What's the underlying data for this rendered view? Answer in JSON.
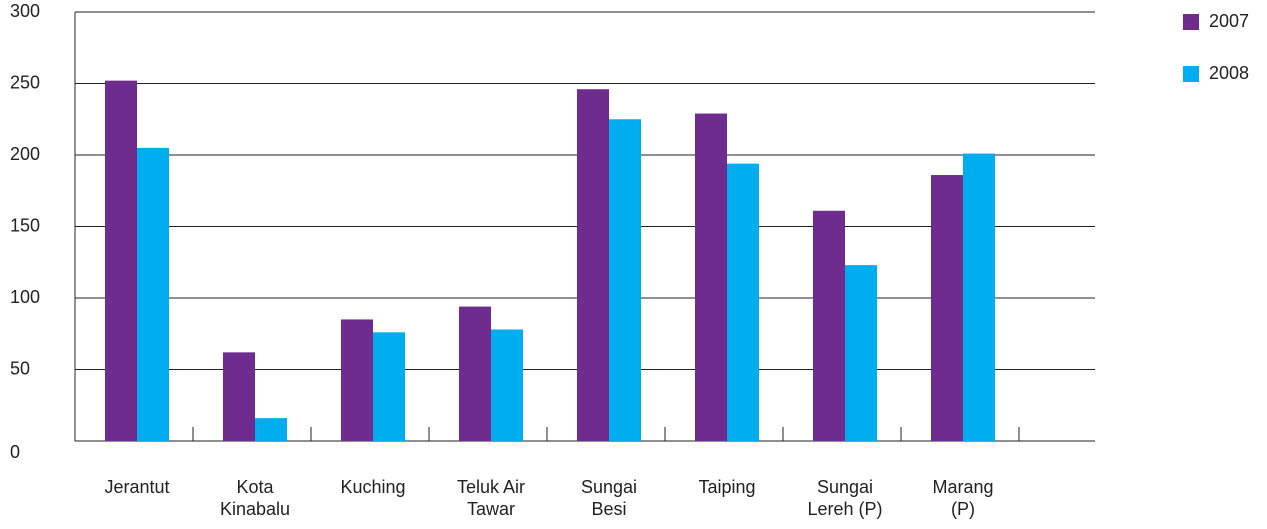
{
  "chart_data": {
    "type": "bar",
    "categories": [
      "Jerantut",
      "Kota\nKinabalu",
      "Kuching",
      "Teluk Air\nTawar",
      "Sungai\nBesi",
      "Taiping",
      "Sungai\nLereh (P)",
      "Marang\n(P)"
    ],
    "series": [
      {
        "name": "2007",
        "color": "#6e2c8e",
        "values": [
          252,
          62,
          85,
          94,
          246,
          229,
          161,
          186
        ]
      },
      {
        "name": "2008",
        "color": "#00aeef",
        "values": [
          205,
          16,
          76,
          78,
          225,
          194,
          123,
          201
        ]
      }
    ],
    "ylim": [
      0,
      300
    ],
    "yticks": [
      0,
      50,
      100,
      150,
      200,
      250,
      300
    ],
    "grid": true,
    "legend": "top-right"
  }
}
